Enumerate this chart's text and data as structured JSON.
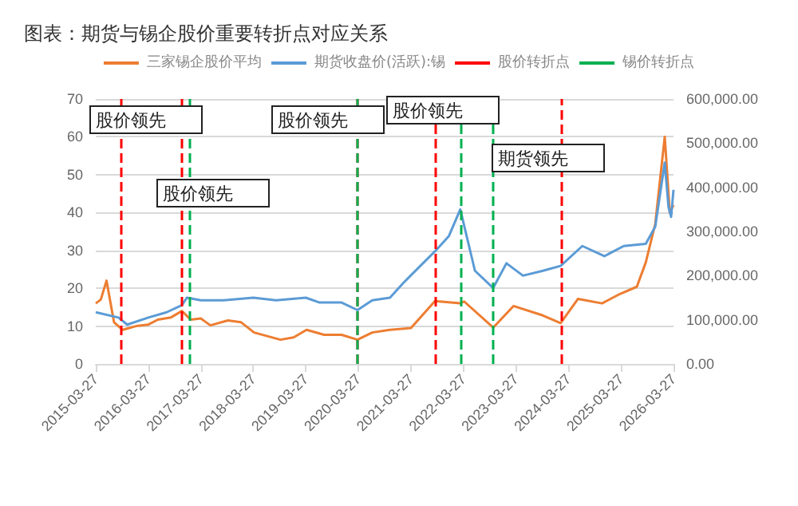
{
  "chart_data": {
    "type": "line",
    "title": "图表：期货与锡企股价重要转折点对应关系",
    "xlim": [
      "2015-03-27",
      "2026-03-27"
    ],
    "xticks": [
      "2015-03-27",
      "2016-03-27",
      "2017-03-27",
      "2018-03-27",
      "2019-03-27",
      "2020-03-27",
      "2021-03-27",
      "2022-03-27",
      "2023-03-27",
      "2024-03-27",
      "2025-03-27",
      "2026-03-27"
    ],
    "ylim": [
      0,
      70
    ],
    "yticks": [
      0,
      10,
      20,
      30,
      40,
      50,
      60,
      70
    ],
    "y2lim": [
      0,
      600000
    ],
    "y2ticks": [
      {
        "value": 0,
        "label": "0.00"
      },
      {
        "value": 100000,
        "label": "100,000.00"
      },
      {
        "value": 200000,
        "label": "200,000.00"
      },
      {
        "value": 300000,
        "label": "300,000.00"
      },
      {
        "value": 400000,
        "label": "400,000.00"
      },
      {
        "value": 500000,
        "label": "500,000.00"
      },
      {
        "value": 600000,
        "label": "600,000.00"
      }
    ],
    "grid": "y",
    "legend": "top",
    "marker": "none",
    "line_style": "solid",
    "series": [
      {
        "name": "三家锡企股价平均",
        "color": "#ed7d31",
        "x": [
          "2015-03-27",
          "2015-05-01",
          "2015-06-10",
          "2015-08-01",
          "2015-10-01",
          "2016-01-01",
          "2016-03-27",
          "2016-06-01",
          "2016-09-01",
          "2016-11-15",
          "2017-01-15",
          "2017-03-27",
          "2017-06-01",
          "2017-10-01",
          "2018-01-01",
          "2018-04-01",
          "2018-10-01",
          "2019-01-01",
          "2019-04-01",
          "2019-08-01",
          "2019-12-01",
          "2020-03-20",
          "2020-07-01",
          "2020-11-01",
          "2021-03-27",
          "2021-09-10",
          "2022-03-05",
          "2022-04-01",
          "2022-10-20",
          "2023-03-10",
          "2023-10-01",
          "2024-02-01",
          "2024-06-01",
          "2024-11-15",
          "2025-03-20",
          "2025-07-15",
          "2025-09-15",
          "2025-11-20",
          "2026-01-25",
          "2026-03-01",
          "2026-03-27"
        ],
        "values": [
          16,
          17,
          22,
          11,
          9,
          10,
          10.4,
          11.7,
          12.3,
          14,
          11.7,
          12,
          10.2,
          11.5,
          11,
          8.3,
          6.4,
          7,
          9,
          7.7,
          7.7,
          6.4,
          8.3,
          9,
          9.5,
          16.6,
          16,
          16.5,
          9.6,
          15.3,
          12.8,
          10.8,
          17.2,
          16,
          18.5,
          20.4,
          26.8,
          37,
          60,
          40,
          42
        ]
      },
      {
        "name": "期货收盘价(活跃):锡",
        "color": "#5b9bd5",
        "axis": "y2",
        "x": [
          "2015-03-27",
          "2015-09-01",
          "2015-11-01",
          "2016-03-27",
          "2016-08-01",
          "2016-11-15",
          "2016-12-20",
          "2017-03-27",
          "2017-09-01",
          "2018-03-27",
          "2018-09-01",
          "2019-03-27",
          "2019-07-01",
          "2019-12-01",
          "2020-03-20",
          "2020-07-01",
          "2020-11-01",
          "2021-02-01",
          "2021-09-10",
          "2021-12-15",
          "2022-03-05",
          "2022-06-15",
          "2022-10-20",
          "2023-01-20",
          "2023-05-15",
          "2023-10-01",
          "2024-02-01",
          "2024-07-01",
          "2024-12-01",
          "2025-04-15",
          "2025-09-15",
          "2025-11-20",
          "2026-01-25",
          "2026-02-20",
          "2026-03-10",
          "2026-03-27"
        ],
        "values": [
          117000,
          105000,
          89000,
          105000,
          117000,
          133000,
          150000,
          144000,
          144000,
          150000,
          144000,
          150000,
          139000,
          139000,
          122000,
          144000,
          150000,
          183000,
          255000,
          289000,
          350000,
          211000,
          172000,
          228000,
          200000,
          211000,
          222000,
          267000,
          244000,
          267000,
          272000,
          311000,
          456000,
          356000,
          333000,
          394000
        ]
      }
    ],
    "ref_lines": [
      {
        "axis": "x",
        "value": "2015-09-20",
        "label": "股价转折点",
        "color": "#ff0000",
        "line_style": "dashed"
      },
      {
        "axis": "x",
        "value": "2016-11-10",
        "color": "#ff0000",
        "line_style": "dashed"
      },
      {
        "axis": "x",
        "value": "2017-01-10",
        "label": "锡价转折点",
        "color": "#00b050",
        "line_style": "dashed"
      },
      {
        "axis": "x",
        "value": "2020-03-20",
        "color": "#ff0000",
        "line_style": "dashed"
      },
      {
        "axis": "x",
        "value": "2020-03-22",
        "color": "#00b050",
        "line_style": "dashed"
      },
      {
        "axis": "x",
        "value": "2021-09-10",
        "color": "#ff0000",
        "line_style": "dashed"
      },
      {
        "axis": "x",
        "value": "2022-03-05",
        "color": "#00b050",
        "line_style": "dashed"
      },
      {
        "axis": "x",
        "value": "2022-10-20",
        "color": "#00b050",
        "line_style": "dashed"
      },
      {
        "axis": "x",
        "value": "2024-02-01",
        "color": "#ff0000",
        "line_style": "dashed"
      }
    ],
    "annotations": [
      "股价领先",
      "股价领先",
      "股价领先",
      "股价领先",
      "期货领先"
    ]
  }
}
